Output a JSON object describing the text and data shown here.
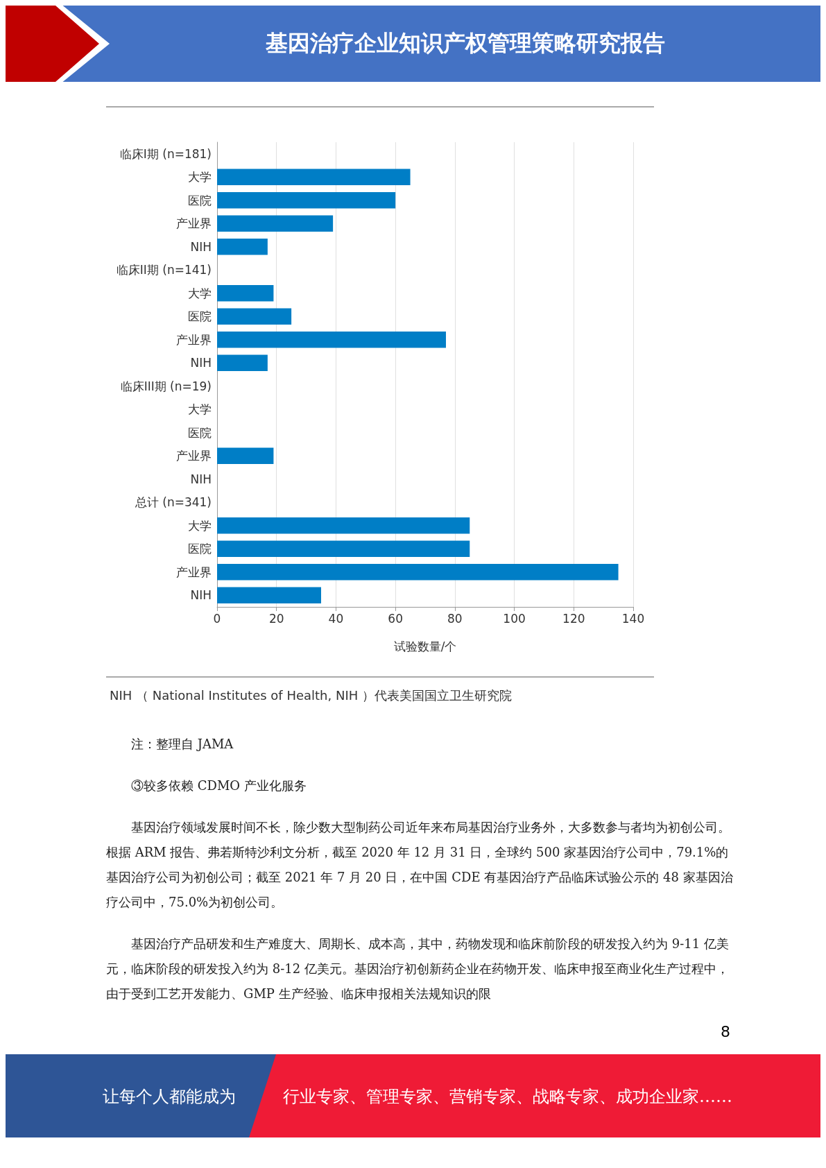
{
  "chart_data": {
    "type": "bar",
    "orientation": "horizontal",
    "title": "基因治疗企业知识产权管理策略研究报告",
    "xlabel": "试验数量/个",
    "categories": [
      "临床I期 (n=181)",
      "大学",
      "医院",
      "产业界",
      "NIH",
      "临床II期 (n=141)",
      "大学",
      "医院",
      "产业界",
      "NIH",
      "临床III期 (n=19)",
      "大学",
      "医院",
      "产业界",
      "NIH",
      "总计 (n=341)",
      "大学",
      "医院",
      "产业界",
      "NIH"
    ],
    "values": [
      null,
      65,
      60,
      39,
      17,
      null,
      19,
      25,
      77,
      17,
      null,
      0,
      0,
      19,
      0,
      null,
      85,
      85,
      135,
      35
    ],
    "color": "#007ec6",
    "xlim": [
      0,
      140
    ],
    "xticks": [
      0,
      20,
      40,
      60,
      80,
      100,
      120,
      140
    ],
    "grid": "x",
    "annotations": [
      "NIH （ National Institutes of Health, NIH ）代表美国国立卫生研究院",
      "注：整理自 JAMA",
      "③较多依赖 CDMO 产业化服务",
      "基因治疗领域发展时间不长，除少数大型制药公司近年来布局基因治疗业务外，大多数参与者均为初创公司。根据 ARM 报告、弗若斯特沙利文分析，截至 2020 年 12 月 31 日，全球约 500 家基因治疗公司中，79.1%的基因治疗公司为初创公司；截至 2021 年 7 月 20 日，在中国 CDE 有基因治疗产品临床试验公示的 48 家基因治疗公司中，75.0%为初创公司。",
      "基因治疗产品研发和生产难度大、周期长、成本高，其中，药物发现和临床前阶段的研发投入约为 9-11 亿美元，临床阶段的研发投入约为 8-12 亿美元。基因治疗初创新药企业在药物开发、临床申报至商业化生产过程中，由于受到工艺开发能力、GMP 生产经验、临床申报相关法规知识的限",
      "8",
      "让每个人都能成为",
      "行业专家、管理专家、营销专家、战略专家、成功企业家……"
    ]
  }
}
